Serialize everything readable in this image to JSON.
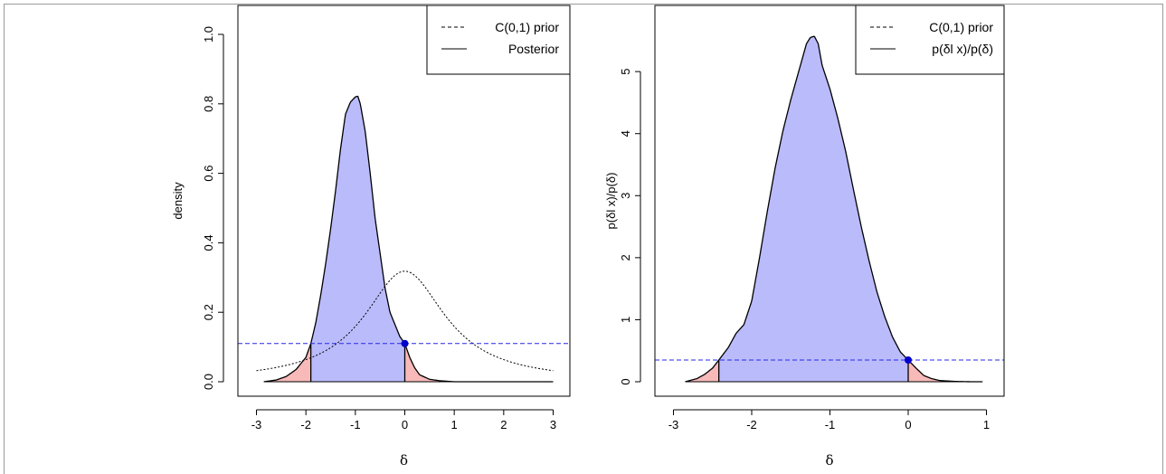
{
  "colors": {
    "hpd_fill": "#babbfb",
    "tail_fill": "#f8b9b9",
    "reference_line": "#2727e8",
    "point": "#0000cc",
    "curve": "#000000"
  },
  "chart_data": [
    {
      "type": "area",
      "xlabel": "δ",
      "ylabel": "density",
      "xlim": [
        -3,
        3
      ],
      "ylim": [
        0,
        1.0
      ],
      "x_ticks": [
        "-3",
        "-2",
        "-1",
        "0",
        "1",
        "2",
        "3"
      ],
      "y_ticks": [
        "0.0",
        "0.2",
        "0.4",
        "0.6",
        "0.8",
        "1.0"
      ],
      "legend_placement": "top-right",
      "legend": [
        {
          "label": "C(0,1) prior",
          "style": "dashed"
        },
        {
          "label": "Posterior",
          "style": "solid"
        }
      ],
      "prior": {
        "type": "cauchy",
        "location": 0,
        "scale": 1,
        "x_range": [
          -3,
          3
        ]
      },
      "posterior": {
        "x": [
          -2.85,
          -2.6,
          -2.4,
          -2.2,
          -2.0,
          -1.9,
          -1.8,
          -1.7,
          -1.6,
          -1.5,
          -1.4,
          -1.3,
          -1.2,
          -1.1,
          -1.0,
          -0.95,
          -0.9,
          -0.8,
          -0.7,
          -0.6,
          -0.5,
          -0.4,
          -0.3,
          -0.2,
          -0.1,
          0.0,
          0.05,
          0.1,
          0.2,
          0.3,
          0.5,
          0.7,
          0.9,
          1.0,
          3.0
        ],
        "y": [
          0.0,
          0.005,
          0.015,
          0.035,
          0.07,
          0.11,
          0.17,
          0.25,
          0.34,
          0.44,
          0.55,
          0.67,
          0.77,
          0.805,
          0.82,
          0.822,
          0.8,
          0.72,
          0.6,
          0.47,
          0.37,
          0.27,
          0.2,
          0.165,
          0.13,
          0.11,
          0.09,
          0.07,
          0.04,
          0.02,
          0.007,
          0.003,
          0.001,
          0.0,
          0.0
        ]
      },
      "reference_line_y": 0.11,
      "point": {
        "x": 0.0,
        "y": 0.11
      },
      "interval": [
        -1.9,
        0.0
      ]
    },
    {
      "type": "area",
      "xlabel": "δ",
      "ylabel": "p(δl x)/p(δ)",
      "xlim": [
        -3,
        1
      ],
      "ylim": [
        0,
        5.6
      ],
      "x_ticks": [
        "-3",
        "-2",
        "-1",
        "0",
        "1"
      ],
      "y_ticks": [
        "0",
        "1",
        "2",
        "3",
        "4",
        "5"
      ],
      "legend_placement": "top-right",
      "legend": [
        {
          "label": "C(0,1) prior",
          "style": "dashed"
        },
        {
          "label": "p(δl x)/p(δ)",
          "style": "solid"
        }
      ],
      "ratio": {
        "x": [
          -2.85,
          -2.7,
          -2.6,
          -2.5,
          -2.42,
          -2.3,
          -2.2,
          -2.1,
          -2.0,
          -1.9,
          -1.8,
          -1.7,
          -1.6,
          -1.5,
          -1.4,
          -1.3,
          -1.25,
          -1.2,
          -1.15,
          -1.1,
          -1.0,
          -0.9,
          -0.8,
          -0.7,
          -0.6,
          -0.5,
          -0.4,
          -0.3,
          -0.2,
          -0.1,
          0.0,
          0.1,
          0.2,
          0.3,
          0.4,
          0.6,
          0.8,
          0.95
        ],
        "y": [
          0.0,
          0.05,
          0.12,
          0.22,
          0.35,
          0.55,
          0.78,
          0.92,
          1.3,
          2.0,
          2.75,
          3.45,
          4.05,
          4.55,
          5.0,
          5.45,
          5.55,
          5.57,
          5.45,
          5.1,
          4.72,
          4.25,
          3.72,
          3.1,
          2.5,
          1.95,
          1.45,
          1.05,
          0.72,
          0.48,
          0.35,
          0.22,
          0.1,
          0.05,
          0.02,
          0.005,
          0.0,
          0.0
        ]
      },
      "reference_line_y": 0.35,
      "point": {
        "x": 0.0,
        "y": 0.35
      },
      "interval": [
        -2.42,
        0.0
      ]
    }
  ]
}
